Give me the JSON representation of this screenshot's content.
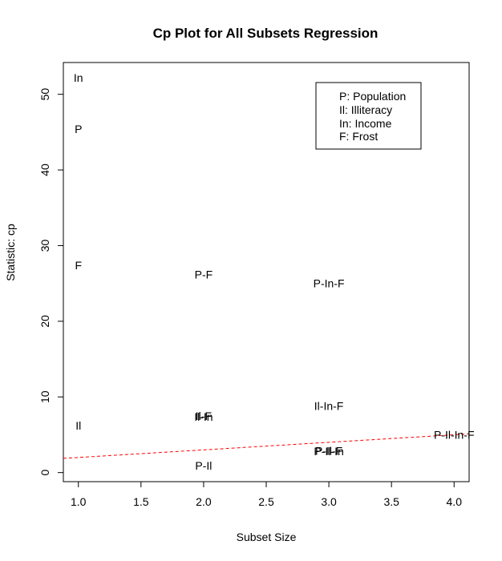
{
  "chart_data": {
    "type": "scatter",
    "title": "Cp Plot for All Subsets Regression",
    "xlabel": "Subset Size",
    "ylabel": "Statistic: cp",
    "xlim": [
      0.88,
      4.12
    ],
    "ylim": [
      -1.2,
      54.2
    ],
    "xticks": [
      {
        "value": 1.0,
        "label": "1.0"
      },
      {
        "value": 1.5,
        "label": "1.5"
      },
      {
        "value": 2.0,
        "label": "2.0"
      },
      {
        "value": 2.5,
        "label": "2.5"
      },
      {
        "value": 3.0,
        "label": "3.0"
      },
      {
        "value": 3.5,
        "label": "3.5"
      },
      {
        "value": 4.0,
        "label": "4.0"
      }
    ],
    "yticks": [
      {
        "value": 0,
        "label": "0"
      },
      {
        "value": 10,
        "label": "10"
      },
      {
        "value": 20,
        "label": "20"
      },
      {
        "value": 30,
        "label": "30"
      },
      {
        "value": 40,
        "label": "40"
      },
      {
        "value": 50,
        "label": "50"
      }
    ],
    "points": [
      {
        "x": 1,
        "y": 52.2,
        "label": "In"
      },
      {
        "x": 1,
        "y": 45.4,
        "label": "P"
      },
      {
        "x": 1,
        "y": 27.4,
        "label": "F"
      },
      {
        "x": 1,
        "y": 6.2,
        "label": "Il"
      },
      {
        "x": 2,
        "y": 26.2,
        "label": "P-F"
      },
      {
        "x": 2,
        "y": 7.5,
        "label": "Il-F"
      },
      {
        "x": 2,
        "y": 7.4,
        "label": "Il-In"
      },
      {
        "x": 2,
        "y": 0.9,
        "label": "P-Il"
      },
      {
        "x": 3,
        "y": 25.0,
        "label": "P-In-F"
      },
      {
        "x": 3,
        "y": 8.8,
        "label": "Il-In-F"
      },
      {
        "x": 3,
        "y": 2.9,
        "label": "P-Il-F"
      },
      {
        "x": 3,
        "y": 2.8,
        "label": "P-Il-In"
      },
      {
        "x": 4,
        "y": 5.0,
        "label": "P-Il-In-F"
      }
    ],
    "reference_line": {
      "x": [
        0.88,
        4.12
      ],
      "y": [
        1.88,
        5.12
      ],
      "color": "#ff0000",
      "style": "dashed"
    },
    "legend": {
      "placement": "top-right",
      "entries": [
        "P: Population",
        "Il: Illiteracy",
        "In: Income",
        "F: Frost"
      ]
    },
    "grid": false
  }
}
